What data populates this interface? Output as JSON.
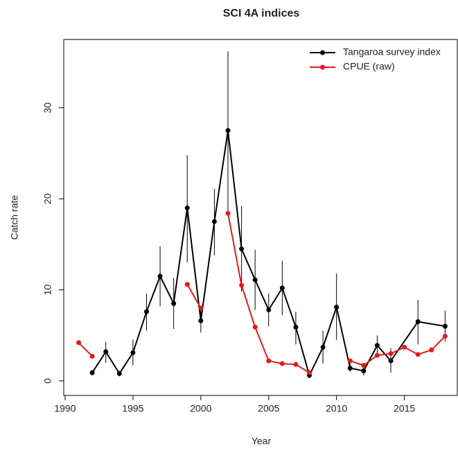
{
  "chart_data": {
    "type": "line",
    "title": "SCI 4A indices",
    "xlabel": "Year",
    "ylabel": "Catch rate",
    "xlim": [
      1989.9,
      2018.9
    ],
    "xticks": [
      1990,
      1995,
      2000,
      2005,
      2010,
      2015
    ],
    "ylim": [
      -1.6,
      37.5
    ],
    "yticks": [
      0,
      10,
      20,
      30
    ],
    "legend": "top-right",
    "series": [
      {
        "name": "Tangaroa survey index",
        "color": "#000000",
        "x": [
          1992,
          1993,
          1994,
          1995,
          1996,
          1997,
          1998,
          1999,
          2000,
          2001,
          2002,
          2003,
          2004,
          2005,
          2006,
          2007,
          2008,
          2009,
          2010,
          2011,
          2012,
          2013,
          2014,
          2016,
          2018
        ],
        "values": [
          0.9,
          3.2,
          0.8,
          3.1,
          7.6,
          11.5,
          8.5,
          19.0,
          6.6,
          17.5,
          27.5,
          14.5,
          11.1,
          7.8,
          10.2,
          5.9,
          0.6,
          3.7,
          8.1,
          1.4,
          1.1,
          3.9,
          2.2,
          6.5,
          6.0
        ],
        "lower": [
          0.6,
          2.0,
          0.5,
          1.7,
          5.5,
          8.2,
          5.7,
          13.0,
          5.3,
          13.8,
          18.5,
          9.8,
          7.8,
          6.0,
          7.2,
          4.0,
          0.3,
          1.9,
          4.5,
          1.0,
          0.6,
          2.8,
          0.9,
          4.0,
          4.3
        ],
        "upper": [
          1.2,
          4.3,
          1.1,
          4.5,
          9.6,
          14.8,
          11.3,
          24.8,
          8.0,
          21.1,
          36.2,
          19.2,
          14.4,
          9.6,
          13.2,
          7.6,
          1.0,
          5.5,
          11.8,
          2.0,
          1.6,
          5.0,
          3.6,
          8.9,
          7.7
        ]
      },
      {
        "name": "CPUE (raw)",
        "color": "#e41a1c",
        "x": [
          1991,
          1992,
          1993,
          1994,
          1995,
          1996,
          1997,
          1998,
          1999,
          2000,
          2001,
          2002,
          2003,
          2004,
          2005,
          2006,
          2007,
          2008,
          2009,
          2010,
          2011,
          2012,
          2013,
          2014,
          2015,
          2016,
          2017,
          2018
        ],
        "values": [
          4.2,
          2.7,
          null,
          null,
          null,
          null,
          null,
          null,
          10.6,
          8.0,
          null,
          18.4,
          10.5,
          5.9,
          2.2,
          1.9,
          1.8,
          0.9,
          null,
          null,
          2.2,
          1.7,
          2.8,
          3.0,
          3.7,
          2.9,
          3.4,
          4.9
        ]
      }
    ]
  }
}
